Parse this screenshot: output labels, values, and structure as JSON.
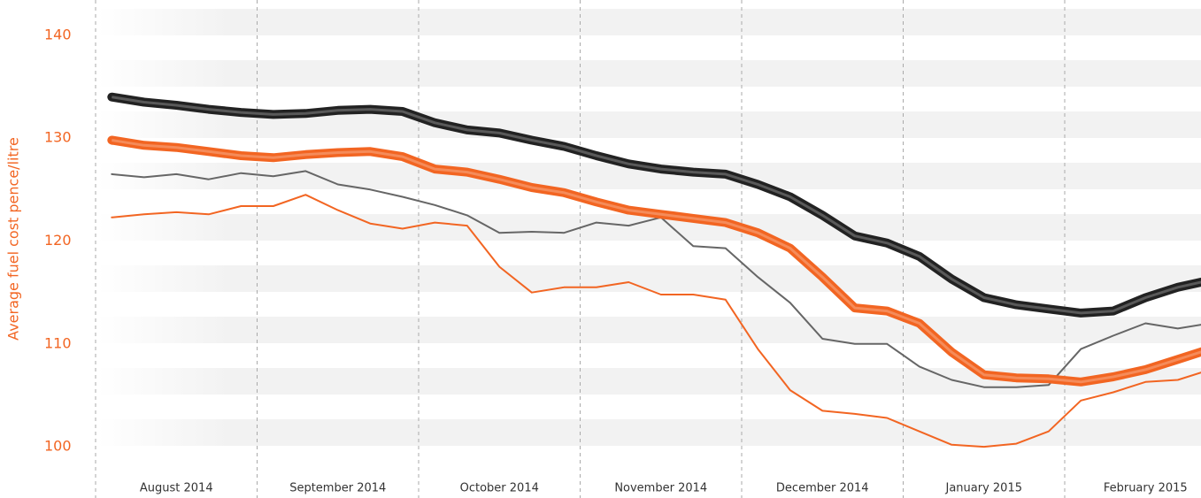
{
  "chart_data": {
    "type": "line",
    "y_label": "Average fuel cost pence/litre",
    "categories": [
      null,
      null,
      "August 2014",
      null,
      null,
      null,
      null,
      "September 2014",
      null,
      null,
      null,
      null,
      "October 2014",
      null,
      null,
      null,
      null,
      "November 2014",
      null,
      null,
      null,
      null,
      "December 2014",
      null,
      null,
      null,
      null,
      "January 2015",
      null,
      null,
      null,
      null,
      "February 2015",
      null,
      null
    ],
    "series": [
      {
        "color": "#222222",
        "line_width": 10,
        "values": [
          134,
          133.5,
          133.2,
          132.8,
          132.5,
          132.3,
          132.4,
          132.7,
          132.8,
          132.6,
          131.5,
          130.8,
          130.5,
          129.8,
          129.2,
          128.3,
          127.5,
          127,
          126.7,
          126.5,
          125.5,
          124.3,
          122.5,
          120.5,
          119.8,
          118.5,
          116.3,
          114.5,
          113.8,
          113.4,
          113,
          113.2,
          114.5,
          115.5,
          116.2
        ]
      },
      {
        "color": "#f26522",
        "line_width": 10,
        "values": [
          129.8,
          129.3,
          129.1,
          128.7,
          128.3,
          128.1,
          128.4,
          128.6,
          128.7,
          128.2,
          127,
          126.7,
          126,
          125.2,
          124.7,
          123.8,
          123,
          122.6,
          122.2,
          121.8,
          120.8,
          119.3,
          116.5,
          113.5,
          113.2,
          112,
          109.2,
          107,
          106.7,
          106.6,
          106.3,
          106.8,
          107.5,
          108.5,
          109.5
        ]
      },
      {
        "color": "#666666",
        "line_width": 2,
        "values": [
          126.5,
          126.2,
          126.5,
          126,
          126.6,
          126.3,
          126.8,
          125.5,
          125,
          124.3,
          123.5,
          122.5,
          120.8,
          120.9,
          120.8,
          121.8,
          121.5,
          122.3,
          119.5,
          119.3,
          116.5,
          114,
          110.5,
          110,
          110,
          107.8,
          106.5,
          105.8,
          105.8,
          106,
          109.5,
          110.8,
          112,
          111.5,
          112
        ]
      },
      {
        "color": "#f26522",
        "line_width": 2,
        "values": [
          122.3,
          122.6,
          122.8,
          122.6,
          123.4,
          123.4,
          124.5,
          123,
          121.7,
          121.2,
          121.8,
          121.5,
          117.5,
          115,
          115.5,
          115.5,
          116,
          114.8,
          114.8,
          114.3,
          109.5,
          105.5,
          103.5,
          103.2,
          102.8,
          101.5,
          100.2,
          100,
          100.3,
          101.5,
          104.5,
          105.3,
          106.3,
          106.5,
          107.5
        ]
      }
    ],
    "ylim": [
      97,
      143
    ],
    "yticks": [
      100,
      110,
      120,
      130,
      140
    ],
    "grid": false
  }
}
